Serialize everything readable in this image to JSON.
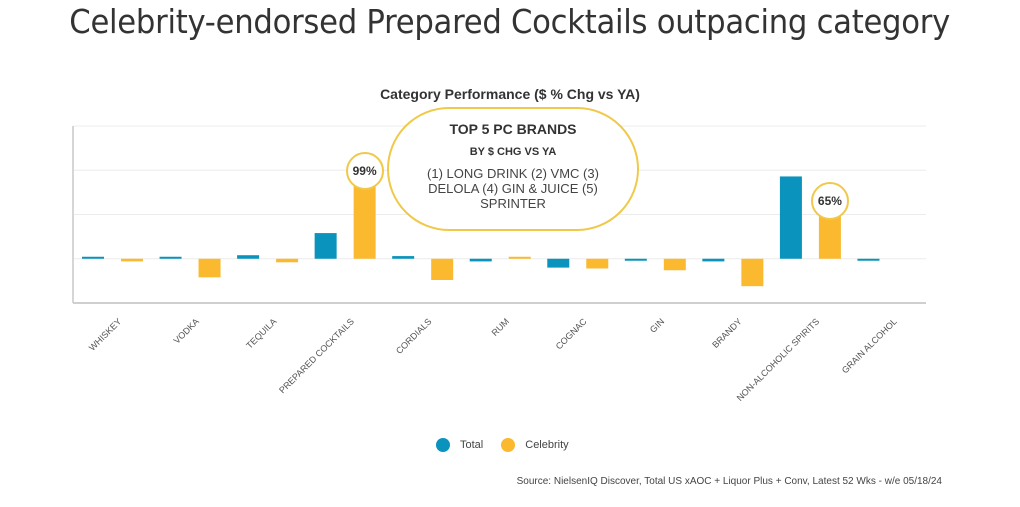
{
  "page_title": "Celebrity-endorsed Prepared Cocktails outpacing category",
  "callout": {
    "title": "TOP 5 PC BRANDS",
    "subtitle": "BY $ CHG VS YA",
    "body": "(1) LONG DRINK (2) VMC  (3) DELOLA  (4) GIN & JUICE (5) SPRINTER"
  },
  "badges": [
    {
      "category": "PREPARED COCKTAILS",
      "series": "Celebrity",
      "label": "99%"
    },
    {
      "category": "NON-ALCOHOLIC SPIRITS",
      "series": "Celebrity",
      "label": "65%"
    }
  ],
  "legend": {
    "total": "Total",
    "celebrity": "Celebrity"
  },
  "source": "Source:  NielsenIQ Discover, Total US xAOC + Liquor Plus + Conv, Latest 52 Wks - w/e 05/18/24",
  "chart_data": {
    "type": "bar",
    "title": "Category Performance ($ % Chg vs YA)",
    "xlabel": "",
    "ylabel": "",
    "ylim": [
      -50,
      150
    ],
    "grid": true,
    "gridlines": [
      -50,
      0,
      50,
      100,
      150
    ],
    "legend_position": "bottom",
    "categories": [
      "WHISKEY",
      "VODKA",
      "TEQUILA",
      "PREPARED COCKTAILS",
      "CORDIALS",
      "RUM",
      "COGNAC",
      "GIN",
      "BRANDY",
      "NON-ALCOHOLIC SPIRITS",
      "GRAIN ALCOHOL"
    ],
    "series": [
      {
        "name": "Total",
        "color": "#0a93bd",
        "values": [
          1,
          0,
          4,
          29,
          3,
          -3,
          -10,
          -1,
          -3,
          93,
          -1
        ]
      },
      {
        "name": "Celebrity",
        "color": "#fbb92f",
        "values": [
          -3,
          -21,
          -4,
          99,
          -24,
          1,
          -11,
          -13,
          -31,
          65,
          null
        ]
      }
    ]
  }
}
